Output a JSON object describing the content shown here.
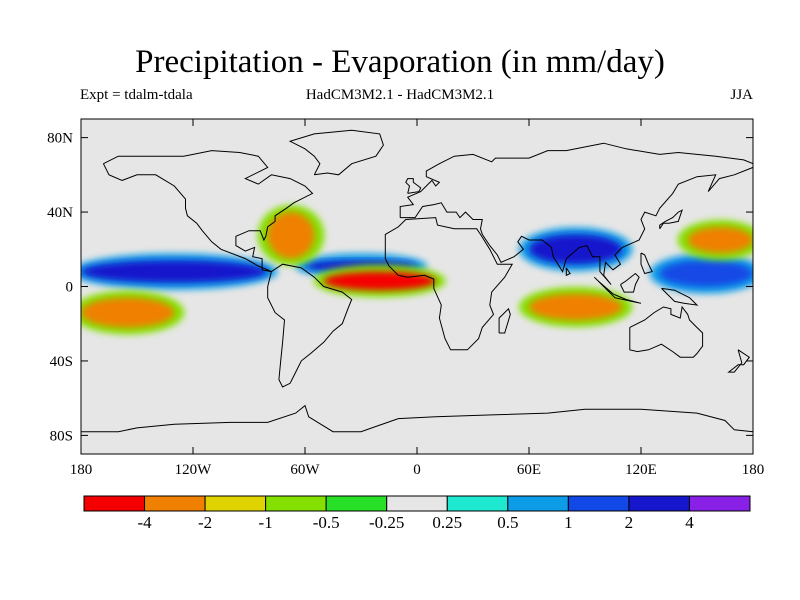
{
  "chart_data": {
    "type": "heatmap",
    "title": "Precipitation - Evaporation (in mm/day)",
    "subtitle_left": "Expt = tdalm-tdala",
    "subtitle_center": "HadCM3M2.1 - HadCM3M2.1",
    "subtitle_right": "JJA",
    "x_ticks": [
      "180",
      "120W",
      "60W",
      "0",
      "60E",
      "120E",
      "180"
    ],
    "y_ticks": [
      "80N",
      "40N",
      "0",
      "40S",
      "80S"
    ],
    "x_range": [
      -180,
      180
    ],
    "y_range": [
      -90,
      90
    ],
    "units": "mm/day",
    "colorbar": {
      "bins": [
        {
          "color": "#f50000"
        },
        {
          "color": "#f08000"
        },
        {
          "color": "#e0d400"
        },
        {
          "color": "#84e000"
        },
        {
          "color": "#28e028"
        },
        {
          "color": "#e6e6e6"
        },
        {
          "color": "#1ee8d0"
        },
        {
          "color": "#0c9ce8"
        },
        {
          "color": "#1248e6"
        },
        {
          "color": "#1616cc"
        },
        {
          "color": "#8820e6"
        }
      ],
      "tick_labels": [
        "-4",
        "-2",
        "-1",
        "-0.5",
        "-0.25",
        "0.25",
        "0.5",
        "1",
        "2",
        "4"
      ]
    },
    "features": [
      {
        "name": "ITCZ Pacific positive",
        "lon": [
          -180,
          -80
        ],
        "lat": [
          2,
          14
        ],
        "level": 4
      },
      {
        "name": "ITCZ Atlantic positive",
        "lon": [
          -60,
          0
        ],
        "lat": [
          8,
          14
        ],
        "level": 4
      },
      {
        "name": "Equatorial Atlantic negative",
        "lon": [
          -50,
          10
        ],
        "lat": [
          -2,
          8
        ],
        "level": -4
      },
      {
        "name": "South Pacific negative",
        "lon": [
          -180,
          -130
        ],
        "lat": [
          -22,
          -6
        ],
        "level": -2
      },
      {
        "name": "North Atlantic negative",
        "lon": [
          -80,
          -55
        ],
        "lat": [
          15,
          40
        ],
        "level": -2
      },
      {
        "name": "Bay of Bengal / India positive",
        "lon": [
          60,
          110
        ],
        "lat": [
          12,
          28
        ],
        "level": 4
      },
      {
        "name": "Indian Ocean negative",
        "lon": [
          60,
          110
        ],
        "lat": [
          -18,
          -4
        ],
        "level": -2
      },
      {
        "name": "West Pacific positive",
        "lon": [
          130,
          180
        ],
        "lat": [
          0,
          14
        ],
        "level": 2
      },
      {
        "name": "North Pacific negative",
        "lon": [
          145,
          180
        ],
        "lat": [
          18,
          32
        ],
        "level": -2
      }
    ]
  }
}
